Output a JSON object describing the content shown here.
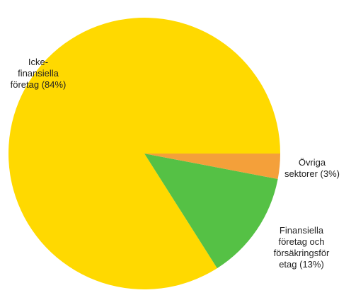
{
  "chart_data": {
    "type": "pie",
    "slices": [
      {
        "label": "Icke-\nfinansiella\nföretag (84%)",
        "value": 84,
        "color": "#FFD900"
      },
      {
        "label": "Finansiella\nföretag och\nförsäkringsför\netag (13%)",
        "value": 13,
        "color": "#55C145"
      },
      {
        "label": "Övriga\nsektorer (3%)",
        "value": 3,
        "color": "#F4A03A"
      }
    ],
    "start_angle_deg": 0,
    "direction": "counterclockwise",
    "legend": "none"
  }
}
